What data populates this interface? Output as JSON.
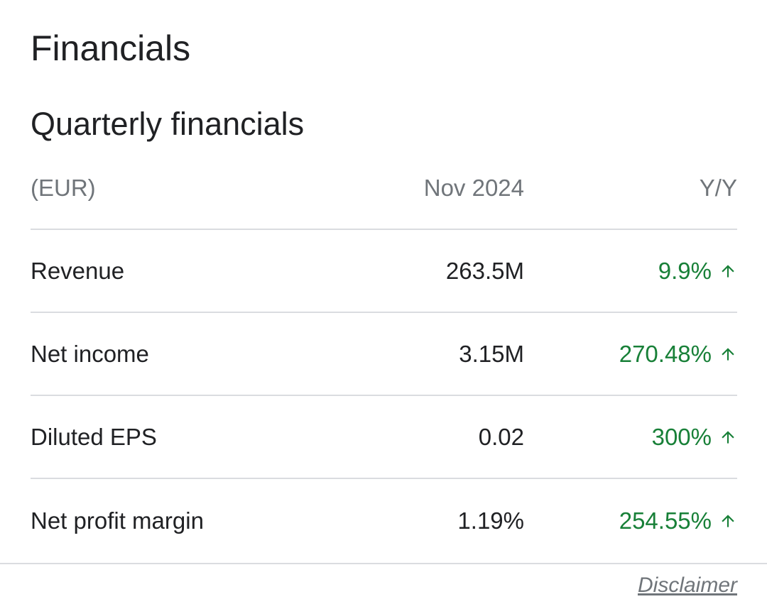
{
  "header": {
    "title": "Financials"
  },
  "section": {
    "title": "Quarterly financials"
  },
  "table": {
    "columns": [
      "(EUR)",
      "Nov 2024",
      "Y/Y"
    ],
    "rows": [
      {
        "label": "Revenue",
        "value": "263.5M",
        "change": "9.9%",
        "direction": "up"
      },
      {
        "label": "Net income",
        "value": "3.15M",
        "change": "270.48%",
        "direction": "up"
      },
      {
        "label": "Diluted EPS",
        "value": "0.02",
        "change": "300%",
        "direction": "up"
      },
      {
        "label": "Net profit margin",
        "value": "1.19%",
        "change": "254.55%",
        "direction": "up"
      }
    ]
  },
  "footer": {
    "disclaimer": "Disclaimer"
  },
  "colors": {
    "positive": "#188038",
    "divider": "#dadce0",
    "muted": "#70757a",
    "text": "#202124"
  },
  "icons": {
    "change_indicator": "arrow-up-icon"
  }
}
